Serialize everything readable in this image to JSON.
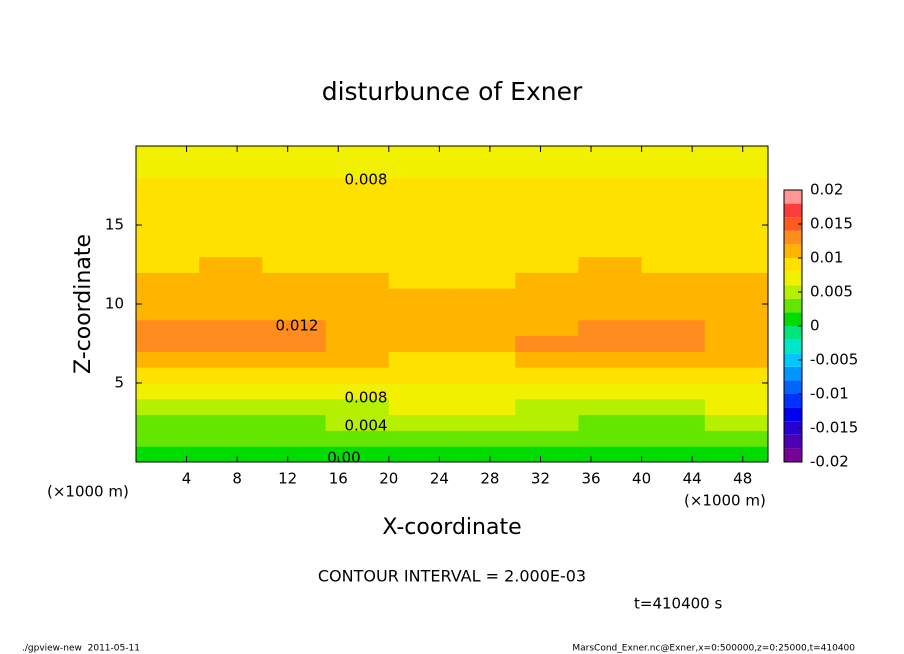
{
  "chart_data": {
    "type": "contour",
    "title": "disturbunce of Exner",
    "x_label": "X-coordinate",
    "y_label": "Z-coordinate",
    "x_unit": "(×1000 m)",
    "xlim": [
      0,
      50
    ],
    "ylim": [
      0,
      20
    ],
    "xticks": [
      4,
      8,
      12,
      16,
      20,
      24,
      28,
      32,
      36,
      40,
      44,
      48
    ],
    "yticks": [
      5,
      10,
      15
    ],
    "x": [
      2.5,
      7.5,
      12.5,
      17.5,
      22.5,
      27.5,
      32.5,
      37.5,
      42.5,
      47.5
    ],
    "z": [
      0.5,
      1.5,
      2.5,
      3.5,
      4.5,
      5.5,
      6.5,
      7.5,
      8.5,
      9.5,
      10.5,
      11.5,
      12.5,
      13.5,
      14.5,
      15.5,
      16.5,
      17.5,
      18.5,
      19.5
    ],
    "values": [
      [
        0.0006,
        0.0005,
        0.0006,
        0.0009,
        0.0014,
        0.0014,
        0.0008,
        0.0005,
        0.0007,
        0.001
      ],
      [
        0.0022,
        0.002,
        0.0022,
        0.0026,
        0.0033,
        0.0034,
        0.0025,
        0.002,
        0.0023,
        0.0028
      ],
      [
        0.0037,
        0.0035,
        0.0037,
        0.0041,
        0.0048,
        0.0049,
        0.004,
        0.0035,
        0.0038,
        0.0043
      ],
      [
        0.0056,
        0.0055,
        0.0056,
        0.0059,
        0.0064,
        0.0064,
        0.0058,
        0.0055,
        0.0057,
        0.006
      ],
      [
        0.0075,
        0.0075,
        0.0075,
        0.0076,
        0.0078,
        0.0078,
        0.0076,
        0.0075,
        0.0076,
        0.0077
      ],
      [
        0.0094,
        0.0095,
        0.0094,
        0.0092,
        0.0089,
        0.0089,
        0.0093,
        0.0095,
        0.0094,
        0.0092
      ],
      [
        0.0113,
        0.0115,
        0.0113,
        0.0107,
        0.0098,
        0.0097,
        0.0109,
        0.0115,
        0.0111,
        0.0105
      ],
      [
        0.0125,
        0.0128,
        0.0125,
        0.0118,
        0.0106,
        0.0105,
        0.012,
        0.0128,
        0.0123,
        0.0115
      ],
      [
        0.0123,
        0.0125,
        0.0123,
        0.0117,
        0.0107,
        0.0106,
        0.0119,
        0.0125,
        0.0121,
        0.0115
      ],
      [
        0.0117,
        0.0118,
        0.0117,
        0.0112,
        0.0106,
        0.0105,
        0.0114,
        0.0118,
        0.0115,
        0.0111
      ],
      [
        0.0109,
        0.011,
        0.0109,
        0.0107,
        0.0103,
        0.0103,
        0.0108,
        0.011,
        0.0108,
        0.0106
      ],
      [
        0.0104,
        0.0105,
        0.0104,
        0.0102,
        0.0099,
        0.0099,
        0.0103,
        0.0105,
        0.0104,
        0.0102
      ],
      [
        0.0099,
        0.01,
        0.0099,
        0.0098,
        0.0095,
        0.0095,
        0.0098,
        0.01,
        0.0099,
        0.0097
      ],
      [
        0.0096,
        0.0097,
        0.0096,
        0.0094,
        0.0091,
        0.0091,
        0.0095,
        0.0097,
        0.0096,
        0.0094
      ],
      [
        0.0093,
        0.0094,
        0.0093,
        0.0092,
        0.0089,
        0.0089,
        0.0092,
        0.0094,
        0.0093,
        0.0091
      ],
      [
        0.009,
        0.0091,
        0.009,
        0.0089,
        0.0087,
        0.0087,
        0.009,
        0.0091,
        0.009,
        0.0089
      ],
      [
        0.0088,
        0.0088,
        0.0088,
        0.0086,
        0.0085,
        0.0084,
        0.0087,
        0.0088,
        0.0087,
        0.0086
      ],
      [
        0.0083,
        0.0083,
        0.0083,
        0.0082,
        0.0081,
        0.0081,
        0.0082,
        0.0083,
        0.0083,
        0.0082
      ],
      [
        0.0079,
        0.0079,
        0.0079,
        0.0079,
        0.0078,
        0.0078,
        0.0079,
        0.0079,
        0.0079,
        0.0079
      ],
      [
        0.0076,
        0.0076,
        0.0076,
        0.0076,
        0.0076,
        0.0076,
        0.0076,
        0.0076,
        0.0076,
        0.0076
      ]
    ],
    "levels": [
      -0.02,
      -0.018,
      -0.016,
      -0.014,
      -0.012,
      -0.01,
      -0.008,
      -0.006,
      -0.004,
      -0.002,
      0,
      0.002,
      0.004,
      0.006,
      0.008,
      0.01,
      0.012,
      0.014,
      0.016,
      0.018,
      0.02
    ],
    "colors": [
      "#780096",
      "#5000b4",
      "#2800d2",
      "#0000f0",
      "#0032ff",
      "#0064ff",
      "#0096ff",
      "#00c8ff",
      "#00e6c8",
      "#00e678",
      "#00dc00",
      "#64e600",
      "#b4f000",
      "#f0f000",
      "#ffe100",
      "#ffb400",
      "#ff8c1e",
      "#ff5a1e",
      "#ff3c3c",
      "#ff9696"
    ],
    "colorbar_ticks": [
      0.02,
      0.015,
      0.01,
      0.005,
      0,
      -0.005,
      -0.01,
      -0.015,
      -0.02
    ],
    "contour_labels": [
      "0.008",
      "0.012",
      "0.008",
      "0.004",
      "0.00"
    ],
    "contour_interval": "CONTOUR INTERVAL = 2.000E-03",
    "time": "t=410400 s",
    "footer_left": "./gpview-new  2011-05-11",
    "footer_right": "MarsCond_Exner.nc@Exner,x=0:500000,z=0:25000,t=410400"
  }
}
